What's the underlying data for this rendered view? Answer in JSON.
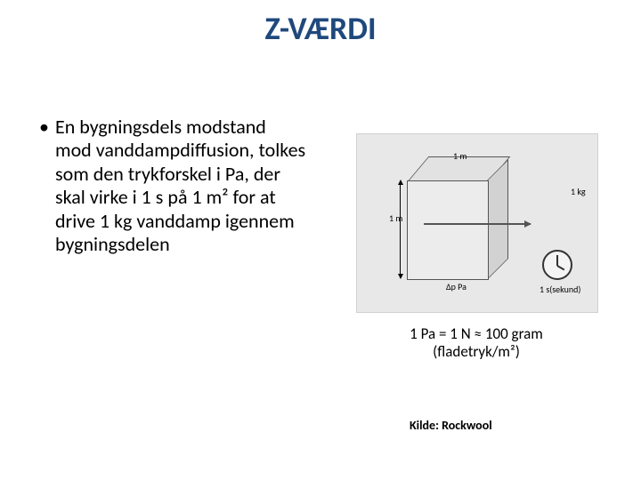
{
  "title": "Z-VÆRDI",
  "bullet": "En bygningsdels modstand mod vanddampdiffusion, tolkes som den trykforskel i Pa, der skal virke i 1 s på 1 m² for at drive 1 kg vanddamp igennem bygningsdelen",
  "diagram": {
    "label_top": "1 m",
    "label_left": "1 m",
    "label_dp": "Δp Pa",
    "label_mass": "1 kg",
    "label_time": "1 s(sekund)"
  },
  "formula_line1": "1 Pa = 1 N ≈ 100 gram",
  "formula_line2": "(fladetryk/m²)",
  "source": "Kilde: Rockwool",
  "colors": {
    "title_color": "#1f497d",
    "bg": "#ffffff",
    "diagram_bg": "#e8e8e8"
  }
}
